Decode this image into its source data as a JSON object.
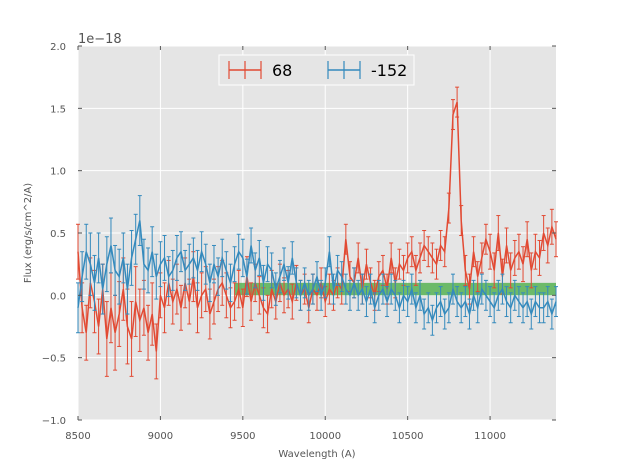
{
  "chart_data": {
    "type": "line",
    "title": "",
    "xlabel": "Wavelength (A)",
    "ylabel": "Flux (erg/s/cm^2/A)",
    "offset_text": "1e−18",
    "xlim": [
      8500,
      11400
    ],
    "ylim": [
      -1.0,
      2.0
    ],
    "x_ticks": [
      8500,
      9000,
      9500,
      10000,
      10500,
      11000
    ],
    "x_tick_labels": [
      "8500",
      "9000",
      "9500",
      "10000",
      "10500",
      "11000"
    ],
    "y_ticks": [
      -1.0,
      -0.5,
      0.0,
      0.5,
      1.0,
      1.5,
      2.0
    ],
    "y_tick_labels": [
      "−1.0",
      "−0.5",
      "0.0",
      "0.5",
      "1.0",
      "1.5",
      "2.0"
    ],
    "grid": true,
    "legend_position": "top-center",
    "band": {
      "x_start": 9450,
      "x_end": 11400,
      "y_low": 0.0,
      "y_high": 0.1,
      "color": "#4daf4a"
    },
    "series": [
      {
        "name": "68",
        "color": "#e24a33",
        "x": [
          8500,
          8525,
          8550,
          8575,
          8600,
          8625,
          8650,
          8675,
          8700,
          8725,
          8750,
          8775,
          8800,
          8825,
          8850,
          8875,
          8900,
          8925,
          8950,
          8975,
          9000,
          9025,
          9050,
          9075,
          9100,
          9125,
          9150,
          9175,
          9200,
          9225,
          9250,
          9275,
          9300,
          9325,
          9350,
          9375,
          9400,
          9425,
          9450,
          9475,
          9500,
          9525,
          9550,
          9575,
          9600,
          9625,
          9650,
          9675,
          9700,
          9725,
          9750,
          9775,
          9800,
          9825,
          9850,
          9875,
          9900,
          9925,
          9950,
          9975,
          10000,
          10025,
          10050,
          10075,
          10100,
          10125,
          10150,
          10175,
          10200,
          10225,
          10250,
          10275,
          10300,
          10325,
          10350,
          10375,
          10400,
          10425,
          10450,
          10475,
          10500,
          10525,
          10550,
          10575,
          10600,
          10625,
          10650,
          10675,
          10700,
          10725,
          10750,
          10775,
          10800,
          10825,
          10850,
          10875,
          10900,
          10925,
          10950,
          10975,
          11000,
          11025,
          11050,
          11075,
          11100,
          11125,
          11150,
          11175,
          11200,
          11225,
          11250,
          11275,
          11300,
          11325,
          11350,
          11375,
          11400
        ],
        "y": [
          0.35,
          -0.1,
          -0.3,
          0.1,
          -0.05,
          -0.25,
          0.05,
          -0.35,
          -0.1,
          -0.3,
          -0.15,
          0.05,
          -0.25,
          -0.35,
          -0.05,
          -0.2,
          -0.1,
          -0.3,
          -0.15,
          -0.45,
          0.0,
          -0.1,
          0.1,
          -0.05,
          0.05,
          -0.1,
          0.1,
          -0.05,
          0.15,
          -0.1,
          0.0,
          0.05,
          -0.15,
          -0.05,
          0.05,
          0.1,
          0.0,
          -0.1,
          -0.05,
          0.05,
          -0.1,
          0.15,
          -0.05,
          0.1,
          0.0,
          -0.1,
          -0.15,
          0.05,
          -0.05,
          0.1,
          0.0,
          0.05,
          -0.05,
          0.1,
          0.0,
          0.05,
          -0.1,
          0.05,
          0.0,
          0.1,
          -0.05,
          0.05,
          0.0,
          0.1,
          0.05,
          0.45,
          0.15,
          0.1,
          0.3,
          0.05,
          0.25,
          0.1,
          0.0,
          0.15,
          0.2,
          0.05,
          0.3,
          0.1,
          0.25,
          0.2,
          0.3,
          0.35,
          0.2,
          0.3,
          0.4,
          0.35,
          0.3,
          0.25,
          0.4,
          0.35,
          0.7,
          1.45,
          1.55,
          0.6,
          0.2,
          0.05,
          0.35,
          0.15,
          0.3,
          0.45,
          0.35,
          0.2,
          0.5,
          0.15,
          0.4,
          0.2,
          0.3,
          0.35,
          0.25,
          0.45,
          0.2,
          0.35,
          0.3,
          0.5,
          0.4,
          0.55,
          0.45
        ],
        "yerr": [
          0.22,
          0.2,
          0.22,
          0.2,
          0.25,
          0.22,
          0.2,
          0.3,
          0.28,
          0.3,
          0.26,
          0.25,
          0.3,
          0.3,
          0.28,
          0.25,
          0.22,
          0.22,
          0.25,
          0.22,
          0.18,
          0.2,
          0.18,
          0.18,
          0.2,
          0.18,
          0.2,
          0.18,
          0.2,
          0.2,
          0.18,
          0.18,
          0.2,
          0.18,
          0.18,
          0.18,
          0.18,
          0.16,
          0.15,
          0.15,
          0.15,
          0.16,
          0.15,
          0.15,
          0.15,
          0.16,
          0.15,
          0.15,
          0.14,
          0.15,
          0.14,
          0.15,
          0.14,
          0.14,
          0.12,
          0.12,
          0.12,
          0.12,
          0.12,
          0.12,
          0.12,
          0.12,
          0.12,
          0.12,
          0.12,
          0.12,
          0.12,
          0.12,
          0.12,
          0.12,
          0.12,
          0.12,
          0.12,
          0.12,
          0.12,
          0.12,
          0.12,
          0.12,
          0.12,
          0.12,
          0.12,
          0.12,
          0.12,
          0.12,
          0.12,
          0.12,
          0.12,
          0.12,
          0.12,
          0.12,
          0.12,
          0.12,
          0.12,
          0.12,
          0.12,
          0.12,
          0.12,
          0.12,
          0.12,
          0.12,
          0.14,
          0.14,
          0.14,
          0.14,
          0.14,
          0.14,
          0.14,
          0.14,
          0.14,
          0.14,
          0.14,
          0.14,
          0.14,
          0.14,
          0.14,
          0.14,
          0.14
        ]
      },
      {
        "name": "-152",
        "color": "#348abd",
        "x": [
          8500,
          8525,
          8550,
          8575,
          8600,
          8625,
          8650,
          8675,
          8700,
          8725,
          8750,
          8775,
          8800,
          8825,
          8850,
          8875,
          8900,
          8925,
          8950,
          8975,
          9000,
          9025,
          9050,
          9075,
          9100,
          9125,
          9150,
          9175,
          9200,
          9225,
          9250,
          9275,
          9300,
          9325,
          9350,
          9375,
          9400,
          9425,
          9450,
          9475,
          9500,
          9525,
          9550,
          9575,
          9600,
          9625,
          9650,
          9675,
          9700,
          9725,
          9750,
          9775,
          9800,
          9825,
          9850,
          9875,
          9900,
          9925,
          9950,
          9975,
          10000,
          10025,
          10050,
          10075,
          10100,
          10125,
          10150,
          10175,
          10200,
          10225,
          10250,
          10275,
          10300,
          10325,
          10350,
          10375,
          10400,
          10425,
          10450,
          10475,
          10500,
          10525,
          10550,
          10575,
          10600,
          10625,
          10650,
          10675,
          10700,
          10725,
          10750,
          10775,
          10800,
          10825,
          10850,
          10875,
          10900,
          10925,
          10950,
          10975,
          11000,
          11025,
          11050,
          11075,
          11100,
          11125,
          11150,
          11175,
          11200,
          11225,
          11250,
          11275,
          11300,
          11325,
          11350,
          11375,
          11400
        ],
        "y": [
          -0.1,
          0.15,
          0.35,
          0.25,
          0.1,
          0.3,
          0.05,
          0.25,
          0.4,
          0.2,
          0.15,
          0.3,
          0.05,
          0.3,
          0.45,
          0.6,
          0.25,
          0.2,
          0.35,
          0.15,
          0.25,
          0.3,
          0.15,
          0.2,
          0.3,
          0.35,
          0.2,
          0.25,
          0.3,
          0.2,
          0.35,
          0.25,
          0.1,
          0.25,
          0.15,
          0.3,
          0.2,
          0.1,
          0.25,
          0.35,
          0.3,
          0.15,
          0.4,
          0.2,
          0.3,
          0.1,
          0.25,
          0.2,
          0.05,
          0.15,
          0.25,
          0.1,
          0.3,
          0.1,
          0.0,
          0.1,
          0.0,
          0.05,
          0.15,
          0.0,
          0.1,
          0.35,
          0.05,
          0.2,
          0.15,
          0.05,
          0.0,
          0.1,
          0.0,
          0.05,
          -0.05,
          0.05,
          -0.1,
          0.0,
          0.05,
          -0.05,
          0.05,
          0.0,
          -0.1,
          0.0,
          -0.05,
          0.05,
          -0.1,
          0.0,
          -0.15,
          -0.1,
          -0.2,
          -0.1,
          -0.05,
          -0.15,
          -0.1,
          0.05,
          -0.05,
          -0.1,
          -0.05,
          -0.15,
          0.0,
          -0.1,
          0.05,
          0.0,
          -0.05,
          -0.1,
          0.0,
          0.05,
          -0.05,
          -0.1,
          0.0,
          -0.05,
          -0.1,
          -0.05,
          -0.15,
          -0.05,
          -0.1,
          -0.1,
          -0.05,
          -0.15,
          -0.05
        ],
        "yerr": [
          0.2,
          0.2,
          0.22,
          0.25,
          0.22,
          0.2,
          0.2,
          0.22,
          0.22,
          0.2,
          0.22,
          0.2,
          0.2,
          0.22,
          0.2,
          0.2,
          0.2,
          0.18,
          0.2,
          0.18,
          0.18,
          0.18,
          0.16,
          0.16,
          0.18,
          0.16,
          0.16,
          0.16,
          0.16,
          0.16,
          0.16,
          0.16,
          0.15,
          0.15,
          0.15,
          0.15,
          0.15,
          0.15,
          0.14,
          0.14,
          0.15,
          0.14,
          0.14,
          0.14,
          0.14,
          0.14,
          0.14,
          0.14,
          0.13,
          0.13,
          0.13,
          0.13,
          0.13,
          0.12,
          0.12,
          0.12,
          0.12,
          0.12,
          0.12,
          0.12,
          0.12,
          0.12,
          0.12,
          0.12,
          0.12,
          0.12,
          0.12,
          0.12,
          0.12,
          0.12,
          0.12,
          0.12,
          0.12,
          0.12,
          0.12,
          0.12,
          0.12,
          0.12,
          0.12,
          0.12,
          0.12,
          0.12,
          0.12,
          0.12,
          0.12,
          0.12,
          0.12,
          0.12,
          0.12,
          0.12,
          0.12,
          0.12,
          0.12,
          0.12,
          0.12,
          0.12,
          0.12,
          0.12,
          0.12,
          0.12,
          0.12,
          0.12,
          0.12,
          0.12,
          0.12,
          0.12,
          0.12,
          0.12,
          0.12,
          0.12,
          0.12,
          0.12,
          0.12,
          0.12,
          0.12,
          0.12,
          0.12
        ]
      }
    ]
  }
}
